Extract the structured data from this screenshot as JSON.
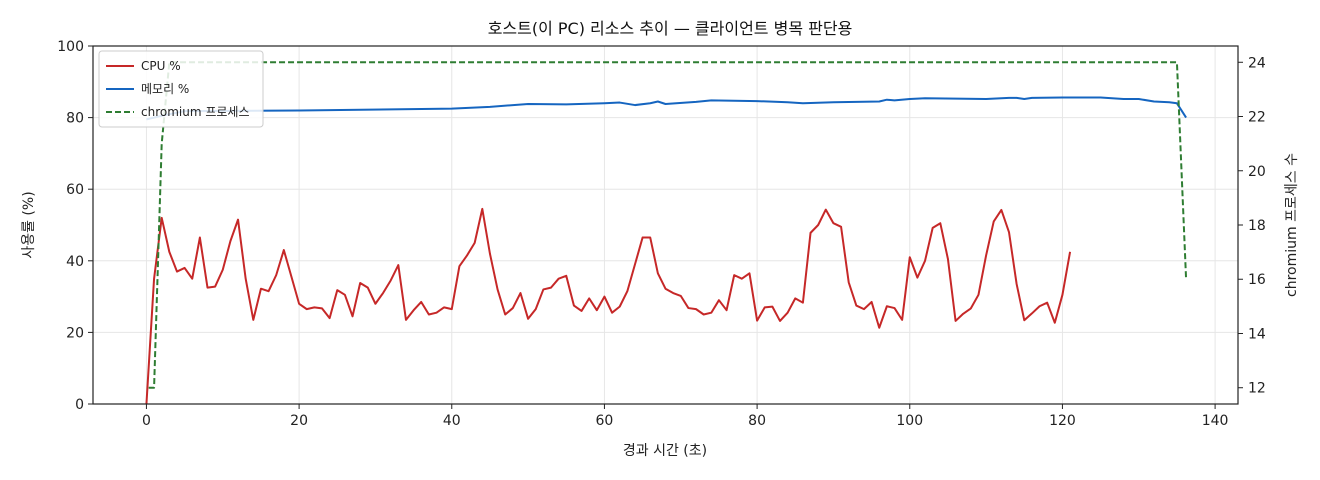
{
  "chart_data": {
    "type": "line",
    "title": "호스트(이 PC) 리소스 추이 — 클라이언트 병목 판단용",
    "xlabel": "경과 시간 (초)",
    "ylabel": "사용률 (%)",
    "y2label": "chromium 프로세스 수",
    "xlim": [
      -7,
      143
    ],
    "ylim": [
      0,
      100
    ],
    "y2lim": [
      11.4,
      24.6
    ],
    "x_ticks": [
      0,
      20,
      40,
      60,
      80,
      100,
      120,
      140
    ],
    "y_ticks": [
      0,
      20,
      40,
      60,
      80,
      100
    ],
    "y2_ticks": [
      12,
      14,
      16,
      18,
      20,
      22,
      24
    ],
    "grid": true,
    "legend": "top-left",
    "series": [
      {
        "name": "CPU %",
        "color": "#c62828",
        "axis": "left",
        "style": "solid",
        "points": [
          [
            0,
            0
          ],
          [
            1,
            35
          ],
          [
            2,
            52
          ],
          [
            3,
            42.5
          ],
          [
            4,
            37
          ],
          [
            5,
            38
          ],
          [
            6,
            35
          ],
          [
            7,
            46.5
          ],
          [
            8,
            32.5
          ],
          [
            9,
            32.8
          ],
          [
            10,
            37.5
          ],
          [
            11,
            45.5
          ],
          [
            12,
            51.5
          ],
          [
            13,
            35
          ],
          [
            14,
            23.5
          ],
          [
            15,
            32.2
          ],
          [
            16,
            31.5
          ],
          [
            17,
            36
          ],
          [
            18,
            43
          ],
          [
            19,
            35.5
          ],
          [
            20,
            28
          ],
          [
            21,
            26.5
          ],
          [
            22,
            27
          ],
          [
            23,
            26.7
          ],
          [
            24,
            24
          ],
          [
            25,
            31.8
          ],
          [
            26,
            30.5
          ],
          [
            27,
            24.5
          ],
          [
            28,
            33.8
          ],
          [
            29,
            32.5
          ],
          [
            30,
            28
          ],
          [
            31,
            31
          ],
          [
            32,
            34.5
          ],
          [
            33,
            38.8
          ],
          [
            34,
            23.5
          ],
          [
            35,
            26.2
          ],
          [
            36,
            28.5
          ],
          [
            37,
            25
          ],
          [
            38,
            25.5
          ],
          [
            39,
            27
          ],
          [
            40,
            26.5
          ],
          [
            41,
            38.5
          ],
          [
            42,
            41.5
          ],
          [
            43,
            45
          ],
          [
            44,
            54.5
          ],
          [
            45,
            42
          ],
          [
            46,
            32
          ],
          [
            47,
            25
          ],
          [
            48,
            26.8
          ],
          [
            49,
            31
          ],
          [
            50,
            23.8
          ],
          [
            51,
            26.5
          ],
          [
            52,
            32
          ],
          [
            53,
            32.5
          ],
          [
            54,
            35
          ],
          [
            55,
            35.8
          ],
          [
            56,
            27.5
          ],
          [
            57,
            26
          ],
          [
            58,
            29.5
          ],
          [
            59,
            26.2
          ],
          [
            60,
            30
          ],
          [
            61,
            25.5
          ],
          [
            62,
            27.2
          ],
          [
            63,
            31.5
          ],
          [
            64,
            39
          ],
          [
            65,
            46.5
          ],
          [
            66,
            46.5
          ],
          [
            67,
            36.5
          ],
          [
            68,
            32.2
          ],
          [
            69,
            31
          ],
          [
            70,
            30.2
          ],
          [
            71,
            26.8
          ],
          [
            72,
            26.5
          ],
          [
            73,
            25
          ],
          [
            74,
            25.5
          ],
          [
            75,
            29
          ],
          [
            76,
            26.2
          ],
          [
            77,
            36
          ],
          [
            78,
            35
          ],
          [
            79,
            36.5
          ],
          [
            80,
            23.3
          ],
          [
            81,
            27
          ],
          [
            82,
            27.2
          ],
          [
            83,
            23.2
          ],
          [
            84,
            25.5
          ],
          [
            85,
            29.5
          ],
          [
            86,
            28.3
          ],
          [
            87,
            47.8
          ],
          [
            88,
            50
          ],
          [
            89,
            54.3
          ],
          [
            90,
            50.5
          ],
          [
            91,
            49.5
          ],
          [
            92,
            34
          ],
          [
            93,
            27.5
          ],
          [
            94,
            26.5
          ],
          [
            95,
            28.5
          ],
          [
            96,
            21.3
          ],
          [
            97,
            27.3
          ],
          [
            98,
            26.8
          ],
          [
            99,
            23.5
          ],
          [
            100,
            41
          ],
          [
            101,
            35.3
          ],
          [
            102,
            40
          ],
          [
            103,
            49.2
          ],
          [
            104,
            50.5
          ],
          [
            105,
            40.5
          ],
          [
            106,
            23.2
          ],
          [
            107,
            25.2
          ],
          [
            108,
            26.7
          ],
          [
            109,
            30.5
          ],
          [
            110,
            41.5
          ],
          [
            111,
            51
          ],
          [
            112,
            54.2
          ],
          [
            113,
            48
          ],
          [
            114,
            33.5
          ],
          [
            115,
            23.4
          ],
          [
            116,
            25.3
          ],
          [
            117,
            27.3
          ],
          [
            118,
            28.3
          ],
          [
            119,
            22.7
          ],
          [
            120,
            30.5
          ],
          [
            121,
            42.5
          ]
        ]
      },
      {
        "name": "메모리 %",
        "color": "#1565c0",
        "axis": "left",
        "style": "solid",
        "points": [
          [
            0,
            79.5
          ],
          [
            2,
            80.5
          ],
          [
            5,
            81.8
          ],
          [
            20,
            82
          ],
          [
            40,
            82.5
          ],
          [
            45,
            83
          ],
          [
            50,
            83.8
          ],
          [
            55,
            83.7
          ],
          [
            60,
            84
          ],
          [
            62,
            84.2
          ],
          [
            64,
            83.5
          ],
          [
            66,
            84
          ],
          [
            67,
            84.5
          ],
          [
            68,
            83.8
          ],
          [
            72,
            84.4
          ],
          [
            74,
            84.8
          ],
          [
            80,
            84.6
          ],
          [
            84,
            84.3
          ],
          [
            86,
            84
          ],
          [
            90,
            84.3
          ],
          [
            96,
            84.5
          ],
          [
            97,
            85
          ],
          [
            98,
            84.8
          ],
          [
            100,
            85.2
          ],
          [
            102,
            85.4
          ],
          [
            110,
            85.2
          ],
          [
            113,
            85.5
          ],
          [
            114,
            85.5
          ],
          [
            115,
            85.2
          ],
          [
            116,
            85.5
          ],
          [
            120,
            85.6
          ],
          [
            125,
            85.6
          ],
          [
            128,
            85.2
          ],
          [
            130,
            85.2
          ],
          [
            132,
            84.5
          ],
          [
            134,
            84.3
          ],
          [
            135,
            84
          ],
          [
            136.2,
            80
          ]
        ]
      },
      {
        "name": "chromium 프로세스",
        "color": "#2e7d32",
        "axis": "right",
        "style": "dashed",
        "points": [
          [
            0.3,
            12
          ],
          [
            1,
            12
          ],
          [
            2,
            21
          ],
          [
            3,
            24
          ],
          [
            135,
            24
          ],
          [
            136.2,
            16
          ]
        ]
      }
    ]
  }
}
